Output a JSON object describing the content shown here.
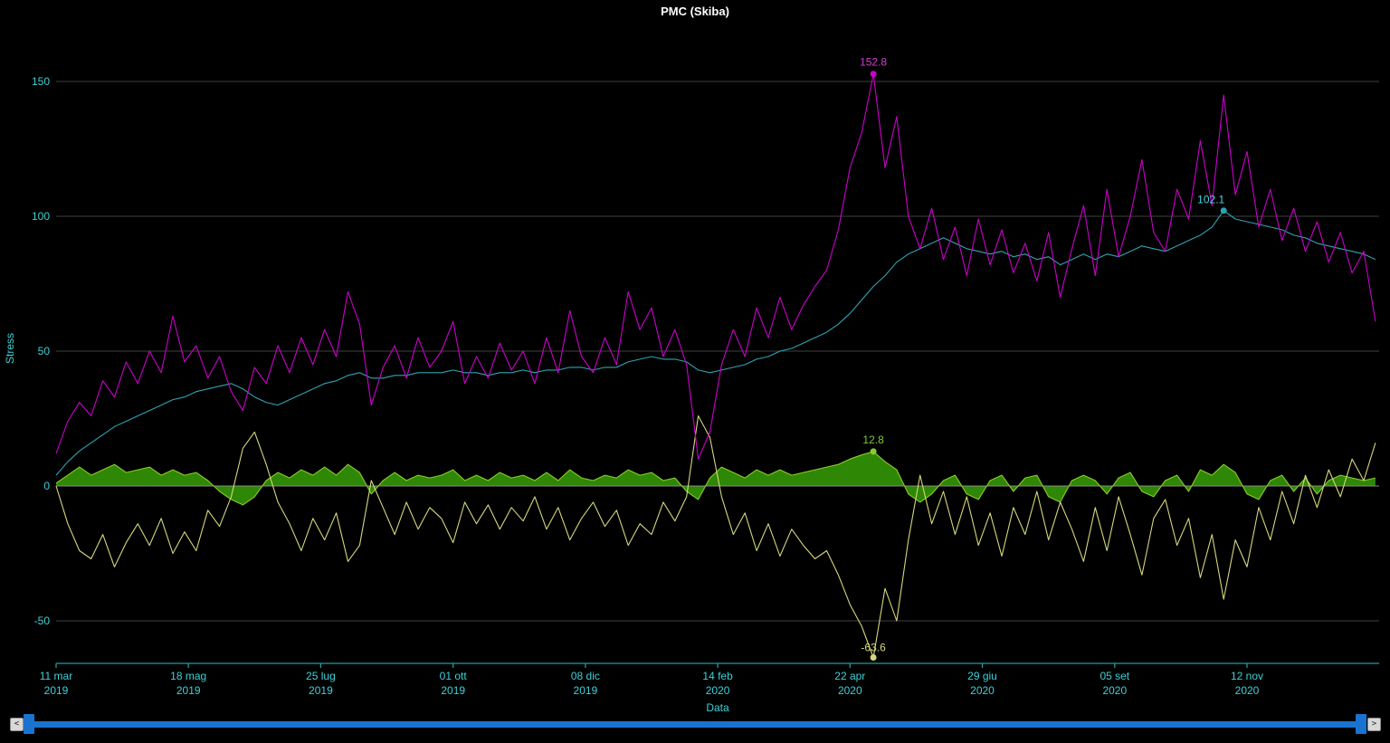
{
  "title": "PMC (Skiba)",
  "scrollbar": {
    "left_arrow": "<",
    "right_arrow": ">"
  },
  "colors": {
    "background": "#000000",
    "title_color": "#ffffff",
    "axis_text": "#3fd0d8",
    "axis_line": "#1f9ba4",
    "gridline": "#3f3f3f",
    "zero_line": "#8a8a8a",
    "magenta": "#cc00cc",
    "cyan": "#2fa3b3",
    "cyan_label": "#4fd4e4",
    "yellow": "#d6d67e",
    "green_fill": "#2e8705",
    "green_stroke": "#8ccb2d",
    "scrollbar_blue": "#1a73d0",
    "scroll_button_bg": "#d8d8d8",
    "scroll_button_border": "#8f8f8f",
    "scroll_button_arrow": "#222222"
  },
  "chart_data": {
    "type": "line",
    "title": "PMC (Skiba)",
    "xlabel": "Data",
    "ylabel": "Stress",
    "legend": "none",
    "grid": "horizontal-only",
    "ylim": [
      -66,
      155
    ],
    "y_ticks": [
      150,
      100,
      50,
      0,
      -50
    ],
    "xlim_days": [
      0,
      679
    ],
    "sample_step_days": 6,
    "x_ticks": [
      {
        "day": 0,
        "line1": "11 mar",
        "line2": "2019"
      },
      {
        "day": 68,
        "line1": "18 mag",
        "line2": "2019"
      },
      {
        "day": 136,
        "line1": "25 lug",
        "line2": "2019"
      },
      {
        "day": 204,
        "line1": "01 ott",
        "line2": "2019"
      },
      {
        "day": 272,
        "line1": "08 dic",
        "line2": "2019"
      },
      {
        "day": 340,
        "line1": "14 feb",
        "line2": "2020"
      },
      {
        "day": 408,
        "line1": "22 apr",
        "line2": "2020"
      },
      {
        "day": 476,
        "line1": "29 giu",
        "line2": "2020"
      },
      {
        "day": 544,
        "line1": "05 set",
        "line2": "2020"
      },
      {
        "day": 612,
        "line1": "12 nov",
        "line2": "2020"
      }
    ],
    "series": [
      {
        "id": "green-area",
        "type": "area",
        "color": "#8ccb2d",
        "fill": "#2e8705",
        "values": [
          1,
          4,
          7,
          4,
          6,
          8,
          5,
          6,
          7,
          4,
          6,
          4,
          5,
          2,
          -2,
          -5,
          -7,
          -4,
          2,
          5,
          3,
          6,
          4,
          7,
          4,
          8,
          5,
          -3,
          2,
          5,
          2,
          4,
          3,
          4,
          6,
          2,
          4,
          2,
          5,
          3,
          4,
          2,
          5,
          2,
          6,
          3,
          2,
          4,
          3,
          6,
          4,
          5,
          2,
          3,
          -2,
          -5,
          3,
          7,
          5,
          3,
          6,
          4,
          6,
          4,
          5,
          6,
          7,
          8,
          10,
          11.5,
          12.8,
          9,
          6,
          -3,
          -6,
          -3,
          2,
          4,
          -3,
          -5,
          2,
          4,
          -2,
          3,
          4,
          -4,
          -6,
          2,
          4,
          2,
          -3,
          3,
          5,
          -2,
          -4,
          2,
          4,
          -2,
          6,
          4,
          8,
          5,
          -3,
          -5,
          2,
          4,
          -2,
          3,
          -3,
          2,
          4,
          3,
          2,
          3
        ]
      },
      {
        "id": "yellow-line",
        "type": "line",
        "color": "#d6d67e",
        "values": [
          0,
          -14,
          -24,
          -27,
          -18,
          -30,
          -21,
          -14,
          -22,
          -12,
          -25,
          -17,
          -24,
          -9,
          -15,
          -4,
          14,
          20,
          8,
          -6,
          -14,
          -24,
          -12,
          -20,
          -10,
          -28,
          -22,
          2,
          -8,
          -18,
          -6,
          -16,
          -8,
          -12,
          -21,
          -6,
          -14,
          -7,
          -16,
          -8,
          -13,
          -4,
          -16,
          -8,
          -20,
          -12,
          -6,
          -15,
          -9,
          -22,
          -14,
          -18,
          -6,
          -13,
          -4,
          26,
          18,
          -4,
          -18,
          -10,
          -24,
          -14,
          -26,
          -16,
          -22,
          -27,
          -24,
          -33,
          -44,
          -52,
          -63.6,
          -38,
          -50,
          -20,
          4,
          -14,
          -2,
          -18,
          -4,
          -22,
          -10,
          -26,
          -8,
          -18,
          -2,
          -20,
          -6,
          -16,
          -28,
          -8,
          -24,
          -4,
          -18,
          -33,
          -12,
          -5,
          -22,
          -12,
          -34,
          -18,
          -42,
          -20,
          -30,
          -8,
          -20,
          -2,
          -14,
          4,
          -8,
          6,
          -4,
          10,
          2,
          16
        ]
      },
      {
        "id": "cyan-line",
        "type": "line",
        "color": "#2fa3b3",
        "values": [
          4,
          9,
          13,
          16,
          19,
          22,
          24,
          26,
          28,
          30,
          32,
          33,
          35,
          36,
          37,
          38,
          36,
          33,
          31,
          30,
          32,
          34,
          36,
          38,
          39,
          41,
          42,
          40,
          40,
          41,
          41,
          42,
          42,
          42,
          43,
          42,
          42,
          41,
          42,
          42,
          43,
          42,
          43,
          43,
          44,
          44,
          43,
          44,
          44,
          46,
          47,
          48,
          47,
          47,
          46,
          43,
          42,
          43,
          44,
          45,
          47,
          48,
          50,
          51,
          53,
          55,
          57,
          60,
          64,
          69,
          74,
          78,
          83,
          86,
          88,
          90,
          92,
          90,
          88,
          87,
          86,
          87,
          85,
          86,
          84,
          85,
          82,
          84,
          86,
          84,
          86,
          85,
          87,
          89,
          88,
          87,
          89,
          91,
          93,
          96,
          102.1,
          99,
          98,
          97,
          96,
          95,
          93,
          92,
          90,
          89,
          88,
          87,
          86,
          84
        ]
      },
      {
        "id": "magenta-line",
        "type": "line",
        "color": "#cc00cc",
        "values": [
          12,
          24,
          31,
          26,
          39,
          33,
          46,
          38,
          50,
          42,
          63,
          46,
          52,
          40,
          48,
          35,
          28,
          44,
          38,
          52,
          42,
          55,
          45,
          58,
          48,
          72,
          60,
          30,
          44,
          52,
          40,
          55,
          44,
          50,
          61,
          38,
          48,
          40,
          53,
          43,
          50,
          38,
          55,
          42,
          65,
          48,
          42,
          55,
          45,
          72,
          58,
          66,
          48,
          58,
          45,
          10,
          20,
          45,
          58,
          48,
          66,
          55,
          70,
          58,
          67,
          74,
          80,
          95,
          118,
          131,
          152.8,
          118,
          137,
          100,
          88,
          103,
          84,
          96,
          78,
          99,
          82,
          95,
          79,
          90,
          76,
          94,
          70,
          88,
          104,
          78,
          110,
          85,
          100,
          121,
          94,
          87,
          110,
          99,
          128,
          104,
          145,
          108,
          124,
          96,
          110,
          91,
          103,
          87,
          98,
          83,
          94,
          79,
          87,
          61
        ]
      }
    ],
    "annotations": [
      {
        "series_id": "magenta-line",
        "day": 420,
        "value": 152.8,
        "label": "152.8",
        "color": "#d43ad4"
      },
      {
        "series_id": "cyan-line",
        "day": 600,
        "value": 102.1,
        "label": "102.1",
        "color": "#4fd4e4"
      },
      {
        "series_id": "green-area",
        "day": 420,
        "value": 12.8,
        "label": "12.8",
        "color": "#7ecb2d"
      },
      {
        "series_id": "yellow-line",
        "day": 420,
        "value": -63.6,
        "label": "-63.6",
        "color": "#d6d67e"
      }
    ]
  }
}
